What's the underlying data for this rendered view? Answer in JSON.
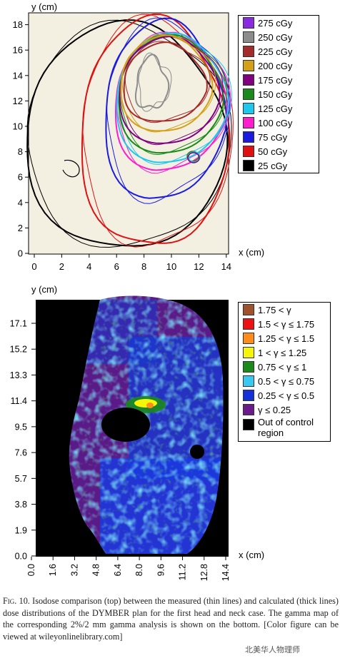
{
  "chart_data": [
    {
      "type": "contour",
      "xlabel": "x (cm)",
      "ylabel": "y (cm)",
      "xlim": [
        0,
        14.5
      ],
      "ylim": [
        0,
        19
      ],
      "xticks": [
        "0",
        "2",
        "4",
        "6",
        "8",
        "10",
        "12",
        "14"
      ],
      "yticks": [
        "0",
        "2",
        "4",
        "6",
        "8",
        "10",
        "12",
        "14",
        "16",
        "18"
      ],
      "legend": [
        {
          "label": "275 cGy",
          "color": "#8a2be2"
        },
        {
          "label": "250 cGy",
          "color": "#8c8c8c"
        },
        {
          "label": "225 cGy",
          "color": "#a52a2a"
        },
        {
          "label": "200 cGy",
          "color": "#d4a017"
        },
        {
          "label": "175 cGy",
          "color": "#800080"
        },
        {
          "label": "150 cGy",
          "color": "#1a8a1a"
        },
        {
          "label": "125 cGy",
          "color": "#1ec8ec"
        },
        {
          "label": "100 cGy",
          "color": "#ff1dce"
        },
        {
          "label": "75 cGy",
          "color": "#1a1ae0"
        },
        {
          "label": "50 cGy",
          "color": "#e01010"
        },
        {
          "label": "25 cGy",
          "color": "#000000"
        }
      ]
    },
    {
      "type": "heatmap",
      "xlabel": "x (cm)",
      "ylabel": "y (cm)",
      "xticks": [
        "0.0",
        "1.6",
        "3.2",
        "4.8",
        "6.4",
        "8.0",
        "9.6",
        "11.2",
        "12.8",
        "14.4"
      ],
      "yticks": [
        "0.0",
        "1.9",
        "3.8",
        "5.7",
        "7.6",
        "9.5",
        "11.4",
        "13.3",
        "15.2",
        "17.1"
      ],
      "legend": [
        {
          "label": "1.75 < γ",
          "color": "#a0522d"
        },
        {
          "label": "1.5 < γ ≤ 1.75",
          "color": "#ee1111"
        },
        {
          "label": "1.25 < γ ≤ 1.5",
          "color": "#ff8c1a"
        },
        {
          "label": "1 < γ ≤ 1.25",
          "color": "#f5f50a"
        },
        {
          "label": "0.75 < γ ≤ 1",
          "color": "#1a8a1a"
        },
        {
          "label": "0.5 < γ ≤ 0.75",
          "color": "#38c8f0"
        },
        {
          "label": "0.25 < γ ≤ 0.5",
          "color": "#1430d8"
        },
        {
          "label": "γ ≤ 0.25",
          "color": "#6a1a8a"
        },
        {
          "label": "Out of control region",
          "color": "#000000"
        }
      ]
    }
  ],
  "caption": {
    "fig_label": "Fig. 10.",
    "text": "Isodose comparison (top) between the measured (thin lines) and calculated (thick lines) dose distributions of the DYMBER plan for the first head and neck case. The gamma map of the corresponding 2%/2 mm gamma analysis is shown on the bottom. [Color figure can be viewed at wileyonlinelibrary.com]"
  },
  "watermark": "北美华人物理师"
}
